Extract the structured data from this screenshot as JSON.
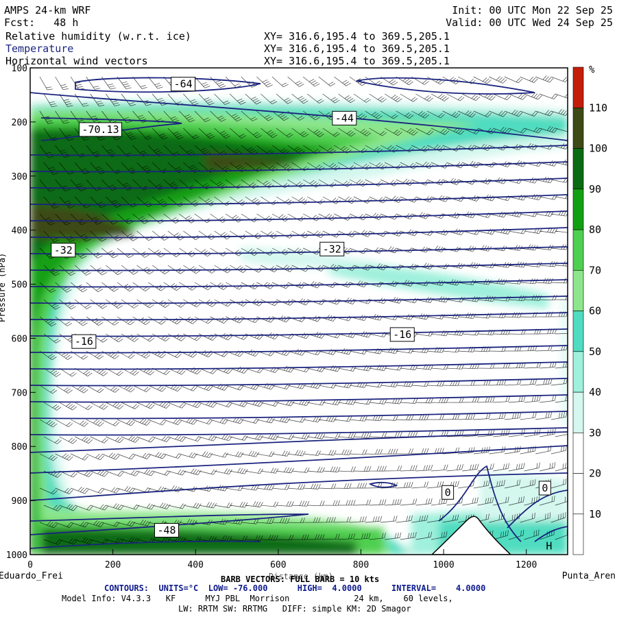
{
  "header": {
    "model": "AMPS 24-km WRF",
    "init": "Init: 00 UTC Mon 22 Sep 25",
    "fcst": "Fcst:   48 h",
    "valid": "Valid: 00 UTC Wed 24 Sep 25",
    "fields": [
      {
        "name": "Relative humidity (w.r.t. ice)",
        "xy": "XY= 316.6,195.4 to 369.5,205.1"
      },
      {
        "name": "Temperature",
        "xy": "XY= 316.6,195.4 to 369.5,205.1"
      },
      {
        "name": "Horizontal wind vectors",
        "xy": "XY= 316.6,195.4 to 369.5,205.1"
      }
    ]
  },
  "footer": {
    "barb": "BARB VECTORS: FULL BARB = 10 kts",
    "contours": "CONTOURS:  UNITS=°C  LOW= -76.000      HIGH=  4.0000      INTERVAL=    4.0000",
    "model_info": "Model Info: V4.3.3   KF      MYJ PBL  Morrison             24 km,    60 levels,",
    "physics": "LW: RRTM SW: RRTMG   DIFF: simple KM: 2D Smagor",
    "left_endpoint": "Eduardo_Frei",
    "right_endpoint": "Punta_Aren",
    "xlabel": "Distance (km)",
    "ylabel": "Pressure (hPa)"
  },
  "colors": {
    "temperature_contour": "#1a237e",
    "rh_scale": [
      "#ffffff",
      "#ffffff",
      "#ffffff",
      "#d4f7ee",
      "#9ff0dc",
      "#4fdcc0",
      "#8ee68c",
      "#4fcf4f",
      "#12a012",
      "#0b6b12",
      "#3e4a16",
      "#c41e0a"
    ]
  },
  "chart_data": {
    "type": "heatmap",
    "title": "Relative humidity (w.r.t. ice), Temperature, Horizontal wind vectors — cross section",
    "x_range": [
      0,
      1300
    ],
    "y_range": [
      1000,
      100
    ],
    "x_ticks": [
      0,
      200,
      400,
      600,
      800,
      1000,
      1200
    ],
    "y_ticks": [
      100,
      200,
      300,
      400,
      500,
      600,
      700,
      800,
      900,
      1000
    ],
    "rh_colorbar": {
      "unit": "%",
      "levels": [
        10,
        20,
        30,
        40,
        50,
        60,
        70,
        80,
        90,
        100,
        110
      ]
    },
    "temperature_contours": {
      "unit": "°C",
      "low": -76,
      "high": 4,
      "interval": 4,
      "labels": [
        {
          "value": "-64",
          "x": 370,
          "p": 130
        },
        {
          "value": "-44",
          "x": 760,
          "p": 193
        },
        {
          "value": "-70.13",
          "x": 170,
          "p": 214
        },
        {
          "value": "-32",
          "x": 80,
          "p": 437
        },
        {
          "value": "-32",
          "x": 730,
          "p": 435
        },
        {
          "value": "-16",
          "x": 130,
          "p": 606
        },
        {
          "value": "-16",
          "x": 900,
          "p": 593
        },
        {
          "value": "0",
          "x": 1010,
          "p": 885
        },
        {
          "value": "0",
          "x": 1245,
          "p": 877
        },
        {
          "value": "-48",
          "x": 330,
          "p": 955
        }
      ],
      "high_marker": {
        "label": "H",
        "x": 1255,
        "p": 983
      }
    },
    "terrain": {
      "peak_x": 1080,
      "peak_p": 931
    }
  }
}
